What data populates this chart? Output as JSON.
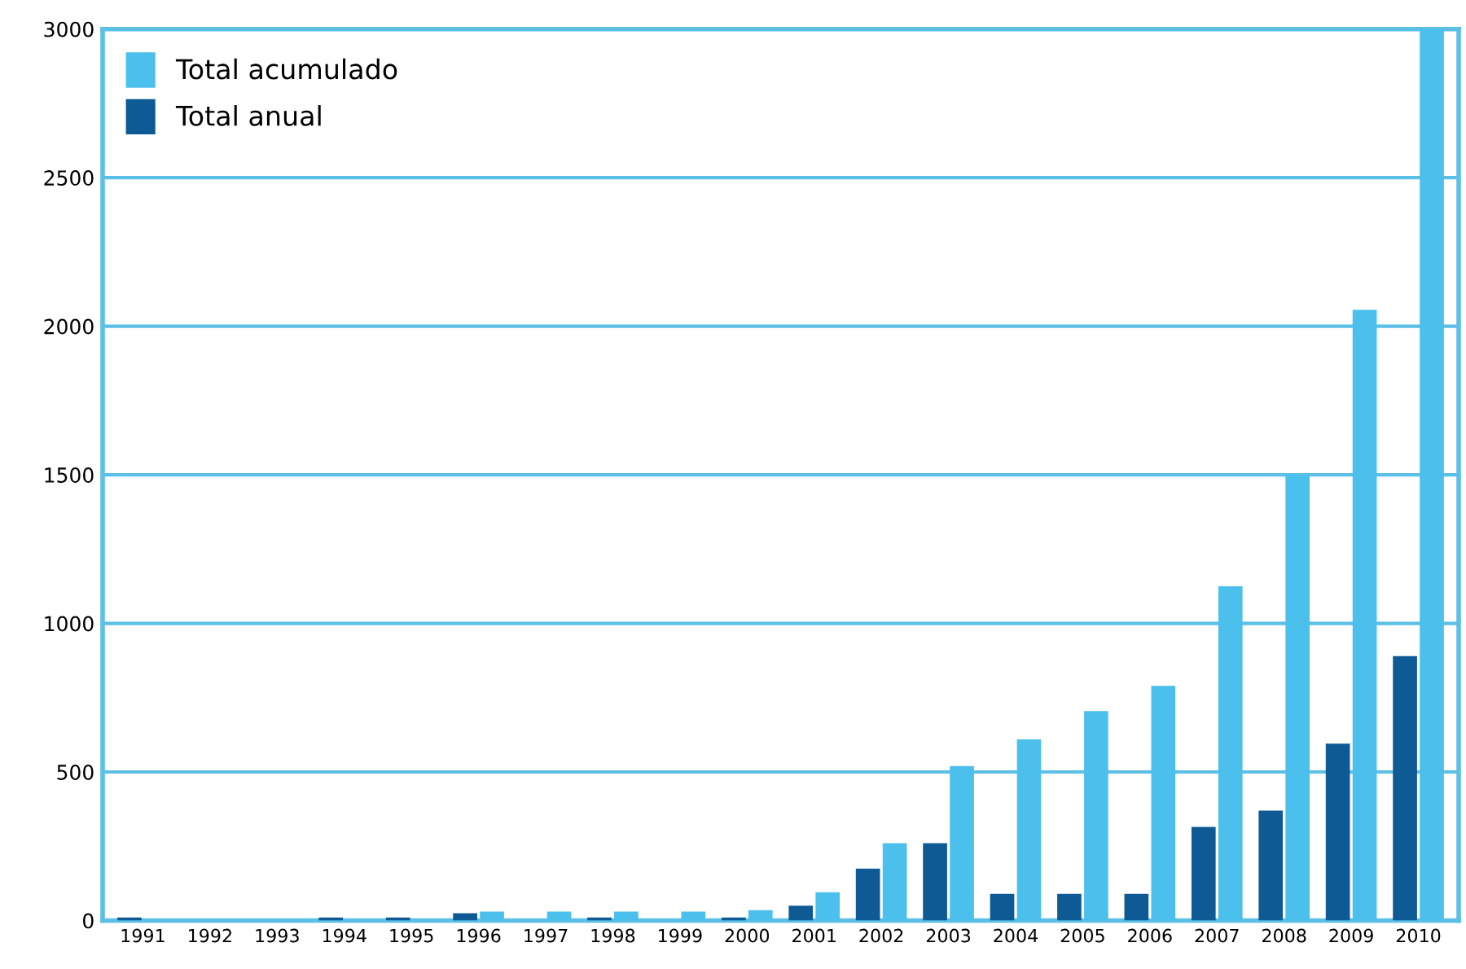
{
  "chart_data": {
    "type": "bar",
    "categories": [
      "1991",
      "1992",
      "1993",
      "1994",
      "1995",
      "1996",
      "1997",
      "1998",
      "1999",
      "2000",
      "2001",
      "2002",
      "2003",
      "2004",
      "2005",
      "2006",
      "2007",
      "2008",
      "2009",
      "2010"
    ],
    "series": [
      {
        "name": "Total anual",
        "color": "#0d5a94",
        "values": [
          10,
          0,
          0,
          10,
          10,
          25,
          0,
          10,
          0,
          10,
          50,
          175,
          260,
          90,
          90,
          90,
          315,
          370,
          595,
          890
        ]
      },
      {
        "name": "Total acumulado",
        "color": "#4cc0ec",
        "values": [
          null,
          null,
          null,
          null,
          null,
          30,
          30,
          30,
          30,
          35,
          95,
          260,
          520,
          610,
          705,
          790,
          1125,
          1500,
          2055,
          3000
        ]
      }
    ],
    "ylim": [
      0,
      3000
    ],
    "yticks": [
      0,
      500,
      1000,
      1500,
      2000,
      2500,
      3000
    ],
    "grid": "y",
    "legend": "top left"
  }
}
